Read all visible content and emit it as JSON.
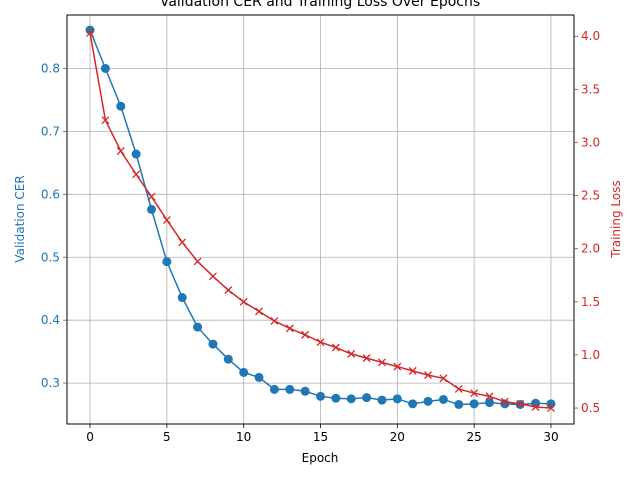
{
  "chart_data": {
    "type": "line",
    "title": "Validation CER and Training Loss Over Epochs",
    "xlabel": "Epoch",
    "xlim": [
      -1.5,
      31.5
    ],
    "x_ticks": [
      0,
      5,
      10,
      15,
      20,
      25,
      30
    ],
    "grid": true,
    "axes": {
      "left": {
        "label": "Validation CER",
        "color": "#1f77b4",
        "ylim": [
          0.235,
          0.885
        ],
        "ticks": [
          0.3,
          0.4,
          0.5,
          0.6,
          0.7,
          0.8
        ],
        "tick_labels": [
          "0.3",
          "0.4",
          "0.5",
          "0.6",
          "0.7",
          "0.8"
        ]
      },
      "right": {
        "label": "Training Loss",
        "color": "#d62728",
        "ylim": [
          0.35,
          4.2
        ],
        "ticks": [
          0.5,
          1.0,
          1.5,
          2.0,
          2.5,
          3.0,
          3.5,
          4.0
        ],
        "tick_labels": [
          "0.5",
          "1.0",
          "1.5",
          "2.0",
          "2.5",
          "3.0",
          "3.5",
          "4.0"
        ]
      }
    },
    "series": [
      {
        "axis": "left",
        "marker": "circle",
        "color": "#1f77b4",
        "x": [
          0,
          1,
          2,
          3,
          4,
          5,
          6,
          7,
          8,
          9,
          10,
          11,
          12,
          13,
          14,
          15,
          16,
          17,
          18,
          19,
          20,
          21,
          22,
          23,
          24,
          25,
          26,
          27,
          28,
          29,
          30
        ],
        "values": [
          0.861,
          0.8,
          0.74,
          0.664,
          0.576,
          0.493,
          0.436,
          0.389,
          0.362,
          0.338,
          0.317,
          0.309,
          0.29,
          0.29,
          0.287,
          0.279,
          0.276,
          0.275,
          0.277,
          0.273,
          0.275,
          0.267,
          0.271,
          0.274,
          0.266,
          0.267,
          0.269,
          0.267,
          0.266,
          0.268,
          0.267
        ]
      },
      {
        "axis": "right",
        "marker": "x",
        "color": "#d62728",
        "x": [
          0,
          1,
          2,
          3,
          4,
          5,
          6,
          7,
          8,
          9,
          10,
          11,
          12,
          13,
          14,
          15,
          16,
          17,
          18,
          19,
          20,
          21,
          22,
          23,
          24,
          25,
          26,
          27,
          28,
          29,
          30
        ],
        "values": [
          4.03,
          3.21,
          2.92,
          2.7,
          2.49,
          2.27,
          2.06,
          1.88,
          1.74,
          1.61,
          1.5,
          1.41,
          1.32,
          1.25,
          1.19,
          1.12,
          1.07,
          1.01,
          0.97,
          0.93,
          0.89,
          0.85,
          0.81,
          0.78,
          0.68,
          0.64,
          0.61,
          0.56,
          0.54,
          0.51,
          0.5
        ]
      }
    ]
  }
}
